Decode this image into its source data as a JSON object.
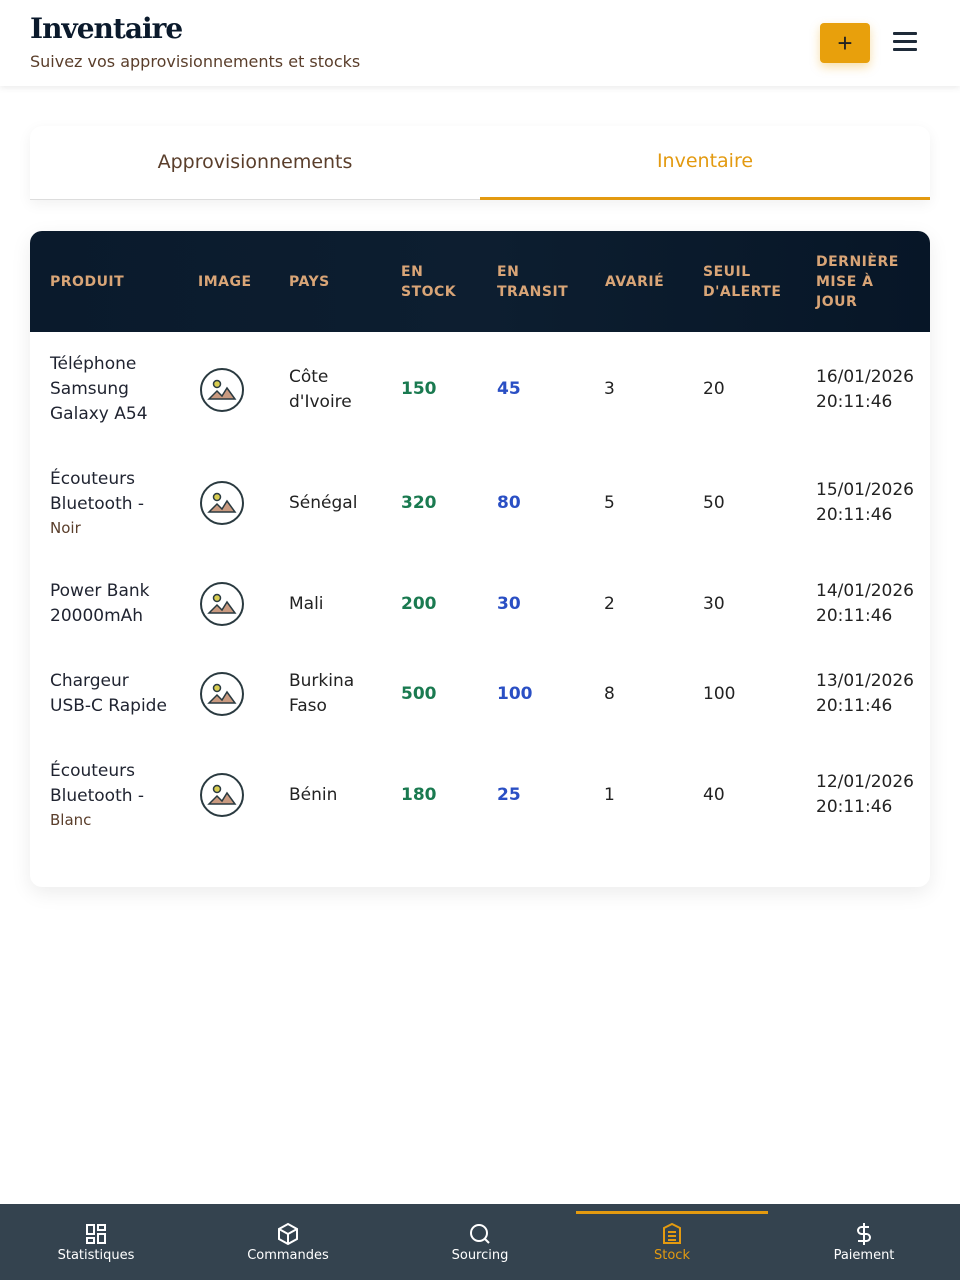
{
  "header": {
    "title": "Inventaire",
    "subtitle": "Suivez vos approvisionnements et stocks",
    "add_label": "+"
  },
  "tabs": [
    {
      "label": "Approvisionnements",
      "active": false
    },
    {
      "label": "Inventaire",
      "active": true
    }
  ],
  "table": {
    "headers": {
      "produit": "PRODUIT",
      "image": "IMAGE",
      "pays": "PAYS",
      "stock": "EN STOCK",
      "transit": "EN TRANSIT",
      "avarie": "AVARIÉ",
      "seuil": "SEUIL D'ALERTE",
      "date": "DERNIÈRE MISE À JOUR"
    },
    "rows": [
      {
        "produit": "Téléphone Samsung Galaxy A54",
        "variant": "",
        "pays": "Côte d'Ivoire",
        "stock": "150",
        "transit": "45",
        "avarie": "3",
        "seuil": "20",
        "date": "16/01/2026 20:11:46"
      },
      {
        "produit": "Écouteurs Bluetooth  -",
        "variant": "Noir",
        "pays": "Sénégal",
        "stock": "320",
        "transit": "80",
        "avarie": "5",
        "seuil": "50",
        "date": "15/01/2026 20:11:46"
      },
      {
        "produit": "Power Bank 20000mAh",
        "variant": "",
        "pays": "Mali",
        "stock": "200",
        "transit": "30",
        "avarie": "2",
        "seuil": "30",
        "date": "14/01/2026 20:11:46"
      },
      {
        "produit": "Chargeur USB-C Rapide",
        "variant": "",
        "pays": "Burkina Faso",
        "stock": "500",
        "transit": "100",
        "avarie": "8",
        "seuil": "100",
        "date": "13/01/2026 20:11:46"
      },
      {
        "produit": "Écouteurs Bluetooth  -",
        "variant": "Blanc",
        "pays": "Bénin",
        "stock": "180",
        "transit": "25",
        "avarie": "1",
        "seuil": "40",
        "date": "12/01/2026 20:11:46"
      }
    ]
  },
  "nav": [
    {
      "label": "Statistiques",
      "icon": "dashboard-icon"
    },
    {
      "label": "Commandes",
      "icon": "package-icon"
    },
    {
      "label": "Sourcing",
      "icon": "search-icon"
    },
    {
      "label": "Stock",
      "icon": "archive-icon",
      "active": true
    },
    {
      "label": "Paiement",
      "icon": "dollar-icon"
    }
  ],
  "colors": {
    "accent": "#e39a10",
    "header_bg": "#0a1a2c",
    "stock": "#1a7a50",
    "transit": "#2a4fc4",
    "nav_bg": "#34434f"
  }
}
